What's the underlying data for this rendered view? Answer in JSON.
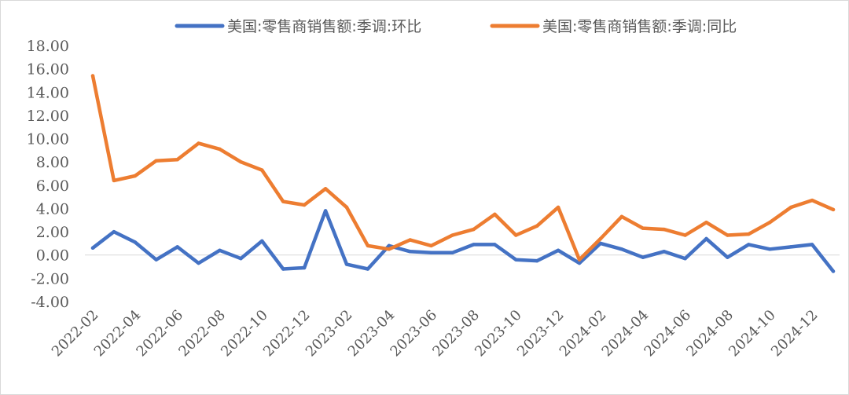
{
  "chart_data": {
    "type": "line",
    "title": "",
    "xlabel": "",
    "ylabel": "",
    "ylim": [
      -4,
      18
    ],
    "yticks": [
      18,
      16,
      14,
      12,
      10,
      8,
      6,
      4,
      2,
      0,
      -2,
      -4
    ],
    "ytick_labels": [
      "18.00",
      "16.00",
      "14.00",
      "12.00",
      "10.00",
      "8.00",
      "6.00",
      "4.00",
      "2.00",
      "0.00",
      "-2.00",
      "-4.00"
    ],
    "x": [
      "2022-02",
      "2022-03",
      "2022-04",
      "2022-05",
      "2022-06",
      "2022-07",
      "2022-08",
      "2022-09",
      "2022-10",
      "2022-11",
      "2022-12",
      "2023-01",
      "2023-02",
      "2023-03",
      "2023-04",
      "2023-05",
      "2023-06",
      "2023-07",
      "2023-08",
      "2023-09",
      "2023-10",
      "2023-11",
      "2023-12",
      "2024-01",
      "2024-02",
      "2024-03",
      "2024-04",
      "2024-05",
      "2024-06",
      "2024-07",
      "2024-08",
      "2024-09",
      "2024-10",
      "2024-11",
      "2024-12",
      "2025-01"
    ],
    "xtick_labels": [
      "2022-02",
      "2022-04",
      "2022-06",
      "2022-08",
      "2022-10",
      "2022-12",
      "2023-02",
      "2023-04",
      "2023-06",
      "2023-08",
      "2023-10",
      "2023-12",
      "2024-02",
      "2024-04",
      "2024-06",
      "2024-08",
      "2024-10",
      "2024-12"
    ],
    "grid": false,
    "legend_position": "top",
    "series": [
      {
        "name": "美国:零售商销售额:季调:环比",
        "color": "#4472C4",
        "values": [
          0.6,
          2.0,
          1.1,
          -0.4,
          0.7,
          -0.7,
          0.4,
          -0.3,
          1.2,
          -1.2,
          -1.1,
          3.8,
          -0.8,
          -1.2,
          0.8,
          0.3,
          0.2,
          0.2,
          0.9,
          0.9,
          -0.4,
          -0.5,
          0.4,
          -0.7,
          1.0,
          0.5,
          -0.2,
          0.3,
          -0.3,
          1.4,
          -0.2,
          0.9,
          0.5,
          0.7,
          0.9,
          -1.4
        ]
      },
      {
        "name": "美国:零售商销售额:季调:同比",
        "color": "#ED7D31",
        "values": [
          15.4,
          6.4,
          6.8,
          8.1,
          8.2,
          9.6,
          9.1,
          8.0,
          7.3,
          4.6,
          4.3,
          5.7,
          4.1,
          0.8,
          0.5,
          1.3,
          0.8,
          1.7,
          2.2,
          3.5,
          1.7,
          2.5,
          4.1,
          -0.4,
          1.4,
          3.3,
          2.3,
          2.2,
          1.7,
          2.8,
          1.7,
          1.8,
          2.8,
          4.1,
          4.7,
          3.9
        ]
      }
    ]
  }
}
